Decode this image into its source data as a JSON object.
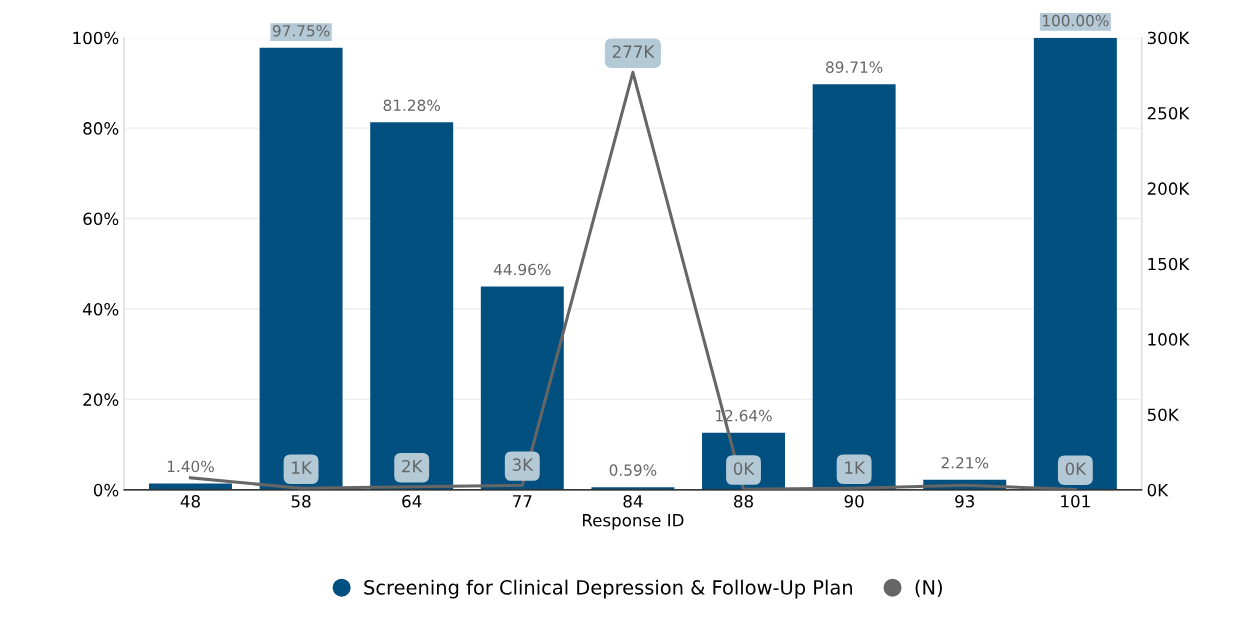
{
  "chart_data": {
    "type": "bar",
    "xlabel": "Response ID",
    "categories": [
      "48",
      "58",
      "64",
      "77",
      "84",
      "88",
      "90",
      "93",
      "101"
    ],
    "series": [
      {
        "name": "Screening for Clinical Depression & Follow-Up Plan",
        "color": "#02507f",
        "values": [
          1.4,
          97.75,
          81.28,
          44.96,
          0.59,
          12.64,
          89.71,
          2.21,
          100.0
        ],
        "value_labels": [
          "1.40%",
          "97.75%",
          "81.28%",
          "44.96%",
          "0.59%",
          "12.64%",
          "89.71%",
          "2.21%",
          "100.00%"
        ]
      },
      {
        "name": "(N)",
        "type": "line",
        "axis": "y2",
        "color": "#666666",
        "values": [
          8000,
          1000,
          2000,
          3000,
          277000,
          400,
          1000,
          3000,
          300
        ],
        "value_labels": [
          null,
          "1K",
          "2K",
          "3K",
          "277K",
          "0K",
          "1K",
          null,
          "0K"
        ]
      }
    ],
    "ylim": [
      0,
      100
    ],
    "yticks": [
      {
        "value": 0,
        "label": "0%"
      },
      {
        "value": 20,
        "label": "20%"
      },
      {
        "value": 40,
        "label": "40%"
      },
      {
        "value": 60,
        "label": "60%"
      },
      {
        "value": 80,
        "label": "80%"
      },
      {
        "value": 100,
        "label": "100%"
      }
    ],
    "y2lim": [
      0,
      300000
    ],
    "y2ticks": [
      {
        "value": 0,
        "label": "0K"
      },
      {
        "value": 50000,
        "label": "50K"
      },
      {
        "value": 100000,
        "label": "100K"
      },
      {
        "value": 150000,
        "label": "150K"
      },
      {
        "value": 200000,
        "label": "200K"
      },
      {
        "value": 250000,
        "label": "250K"
      },
      {
        "value": 300000,
        "label": "300K"
      }
    ],
    "grid": "y",
    "legend": "bottom",
    "marker": "none",
    "line_style": "solid"
  }
}
